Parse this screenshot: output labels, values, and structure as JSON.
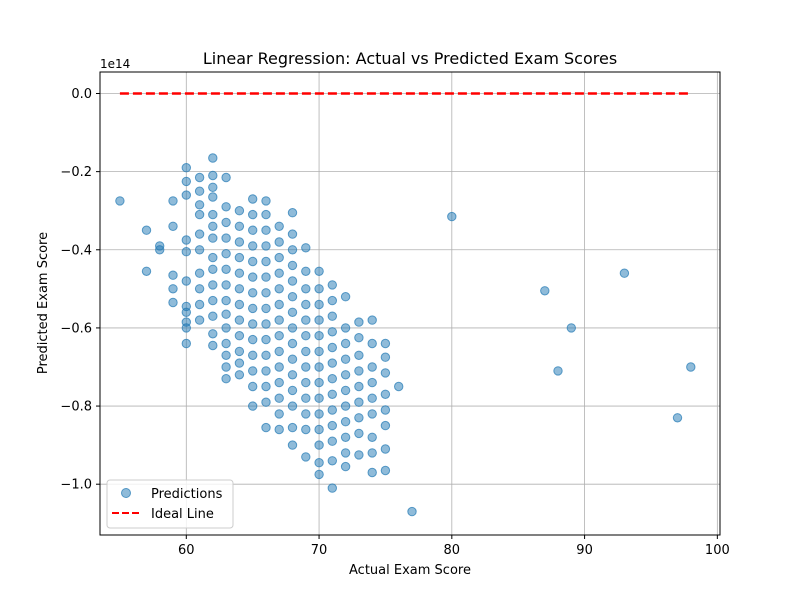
{
  "chart_data": {
    "type": "scatter",
    "title": "Linear Regression: Actual vs Predicted Exam Scores",
    "xlabel": "Actual Exam Score",
    "ylabel": "Predicted Exam Score",
    "y_scale_label": "1e14",
    "xlim": [
      53.5,
      100.2
    ],
    "ylim": [
      -1.13,
      0.055
    ],
    "x_ticks": [
      60,
      70,
      80,
      90,
      100
    ],
    "x_tick_labels": [
      "60",
      "70",
      "80",
      "90",
      "100"
    ],
    "y_ticks": [
      0.0,
      -0.2,
      -0.4,
      -0.6,
      -0.8,
      -1.0
    ],
    "y_tick_labels": [
      "0.0",
      "−0.2",
      "−0.4",
      "−0.6",
      "−0.8",
      "−1.0"
    ],
    "grid": true,
    "legend_position": "lower-left",
    "series": [
      {
        "name": "Predictions",
        "kind": "scatter",
        "color": "#1f77b4",
        "points": [
          [
            55,
            -0.275
          ],
          [
            57,
            -0.35
          ],
          [
            57,
            -0.455
          ],
          [
            58,
            -0.39
          ],
          [
            58,
            -0.4
          ],
          [
            59,
            -0.275
          ],
          [
            59,
            -0.34
          ],
          [
            59,
            -0.465
          ],
          [
            59,
            -0.5
          ],
          [
            59,
            -0.535
          ],
          [
            60,
            -0.19
          ],
          [
            60,
            -0.225
          ],
          [
            60,
            -0.26
          ],
          [
            60,
            -0.375
          ],
          [
            60,
            -0.405
          ],
          [
            60,
            -0.48
          ],
          [
            60,
            -0.545
          ],
          [
            60,
            -0.56
          ],
          [
            60,
            -0.585
          ],
          [
            60,
            -0.6
          ],
          [
            60,
            -0.64
          ],
          [
            61,
            -0.215
          ],
          [
            61,
            -0.25
          ],
          [
            61,
            -0.285
          ],
          [
            61,
            -0.31
          ],
          [
            61,
            -0.36
          ],
          [
            61,
            -0.4
          ],
          [
            61,
            -0.46
          ],
          [
            61,
            -0.5
          ],
          [
            61,
            -0.54
          ],
          [
            61,
            -0.58
          ],
          [
            62,
            -0.165
          ],
          [
            62,
            -0.21
          ],
          [
            62,
            -0.24
          ],
          [
            62,
            -0.265
          ],
          [
            62,
            -0.31
          ],
          [
            62,
            -0.34
          ],
          [
            62,
            -0.37
          ],
          [
            62,
            -0.42
          ],
          [
            62,
            -0.45
          ],
          [
            62,
            -0.49
          ],
          [
            62,
            -0.53
          ],
          [
            62,
            -0.57
          ],
          [
            62,
            -0.615
          ],
          [
            62,
            -0.645
          ],
          [
            63,
            -0.215
          ],
          [
            63,
            -0.29
          ],
          [
            63,
            -0.33
          ],
          [
            63,
            -0.37
          ],
          [
            63,
            -0.41
          ],
          [
            63,
            -0.45
          ],
          [
            63,
            -0.49
          ],
          [
            63,
            -0.53
          ],
          [
            63,
            -0.565
          ],
          [
            63,
            -0.6
          ],
          [
            63,
            -0.64
          ],
          [
            63,
            -0.67
          ],
          [
            63,
            -0.7
          ],
          [
            63,
            -0.73
          ],
          [
            64,
            -0.3
          ],
          [
            64,
            -0.34
          ],
          [
            64,
            -0.38
          ],
          [
            64,
            -0.42
          ],
          [
            64,
            -0.46
          ],
          [
            64,
            -0.5
          ],
          [
            64,
            -0.54
          ],
          [
            64,
            -0.58
          ],
          [
            64,
            -0.62
          ],
          [
            64,
            -0.66
          ],
          [
            64,
            -0.69
          ],
          [
            64,
            -0.72
          ],
          [
            65,
            -0.27
          ],
          [
            65,
            -0.31
          ],
          [
            65,
            -0.35
          ],
          [
            65,
            -0.39
          ],
          [
            65,
            -0.43
          ],
          [
            65,
            -0.47
          ],
          [
            65,
            -0.51
          ],
          [
            65,
            -0.55
          ],
          [
            65,
            -0.59
          ],
          [
            65,
            -0.63
          ],
          [
            65,
            -0.67
          ],
          [
            65,
            -0.71
          ],
          [
            65,
            -0.75
          ],
          [
            65,
            -0.8
          ],
          [
            66,
            -0.275
          ],
          [
            66,
            -0.31
          ],
          [
            66,
            -0.35
          ],
          [
            66,
            -0.39
          ],
          [
            66,
            -0.43
          ],
          [
            66,
            -0.47
          ],
          [
            66,
            -0.51
          ],
          [
            66,
            -0.55
          ],
          [
            66,
            -0.59
          ],
          [
            66,
            -0.63
          ],
          [
            66,
            -0.67
          ],
          [
            66,
            -0.71
          ],
          [
            66,
            -0.75
          ],
          [
            66,
            -0.79
          ],
          [
            66,
            -0.855
          ],
          [
            67,
            -0.34
          ],
          [
            67,
            -0.38
          ],
          [
            67,
            -0.42
          ],
          [
            67,
            -0.46
          ],
          [
            67,
            -0.5
          ],
          [
            67,
            -0.54
          ],
          [
            67,
            -0.58
          ],
          [
            67,
            -0.62
          ],
          [
            67,
            -0.66
          ],
          [
            67,
            -0.7
          ],
          [
            67,
            -0.74
          ],
          [
            67,
            -0.78
          ],
          [
            67,
            -0.82
          ],
          [
            67,
            -0.86
          ],
          [
            68,
            -0.305
          ],
          [
            68,
            -0.36
          ],
          [
            68,
            -0.4
          ],
          [
            68,
            -0.44
          ],
          [
            68,
            -0.48
          ],
          [
            68,
            -0.52
          ],
          [
            68,
            -0.56
          ],
          [
            68,
            -0.6
          ],
          [
            68,
            -0.64
          ],
          [
            68,
            -0.68
          ],
          [
            68,
            -0.72
          ],
          [
            68,
            -0.76
          ],
          [
            68,
            -0.8
          ],
          [
            68,
            -0.855
          ],
          [
            68,
            -0.9
          ],
          [
            69,
            -0.395
          ],
          [
            69,
            -0.455
          ],
          [
            69,
            -0.5
          ],
          [
            69,
            -0.54
          ],
          [
            69,
            -0.58
          ],
          [
            69,
            -0.62
          ],
          [
            69,
            -0.66
          ],
          [
            69,
            -0.7
          ],
          [
            69,
            -0.74
          ],
          [
            69,
            -0.78
          ],
          [
            69,
            -0.82
          ],
          [
            69,
            -0.86
          ],
          [
            69,
            -0.93
          ],
          [
            70,
            -0.455
          ],
          [
            70,
            -0.5
          ],
          [
            70,
            -0.54
          ],
          [
            70,
            -0.58
          ],
          [
            70,
            -0.62
          ],
          [
            70,
            -0.66
          ],
          [
            70,
            -0.7
          ],
          [
            70,
            -0.74
          ],
          [
            70,
            -0.78
          ],
          [
            70,
            -0.82
          ],
          [
            70,
            -0.86
          ],
          [
            70,
            -0.9
          ],
          [
            70,
            -0.945
          ],
          [
            70,
            -0.975
          ],
          [
            71,
            -0.49
          ],
          [
            71,
            -0.53
          ],
          [
            71,
            -0.57
          ],
          [
            71,
            -0.61
          ],
          [
            71,
            -0.65
          ],
          [
            71,
            -0.69
          ],
          [
            71,
            -0.73
          ],
          [
            71,
            -0.77
          ],
          [
            71,
            -0.81
          ],
          [
            71,
            -0.85
          ],
          [
            71,
            -0.89
          ],
          [
            71,
            -0.94
          ],
          [
            71,
            -1.01
          ],
          [
            72,
            -0.52
          ],
          [
            72,
            -0.6
          ],
          [
            72,
            -0.64
          ],
          [
            72,
            -0.68
          ],
          [
            72,
            -0.72
          ],
          [
            72,
            -0.76
          ],
          [
            72,
            -0.8
          ],
          [
            72,
            -0.84
          ],
          [
            72,
            -0.88
          ],
          [
            72,
            -0.92
          ],
          [
            72,
            -0.955
          ],
          [
            73,
            -0.585
          ],
          [
            73,
            -0.625
          ],
          [
            73,
            -0.67
          ],
          [
            73,
            -0.71
          ],
          [
            73,
            -0.75
          ],
          [
            73,
            -0.79
          ],
          [
            73,
            -0.83
          ],
          [
            73,
            -0.87
          ],
          [
            73,
            -0.925
          ],
          [
            74,
            -0.58
          ],
          [
            74,
            -0.64
          ],
          [
            74,
            -0.7
          ],
          [
            74,
            -0.74
          ],
          [
            74,
            -0.78
          ],
          [
            74,
            -0.82
          ],
          [
            74,
            -0.88
          ],
          [
            74,
            -0.92
          ],
          [
            74,
            -0.97
          ],
          [
            75,
            -0.64
          ],
          [
            75,
            -0.675
          ],
          [
            75,
            -0.715
          ],
          [
            75,
            -0.77
          ],
          [
            75,
            -0.81
          ],
          [
            75,
            -0.85
          ],
          [
            75,
            -0.91
          ],
          [
            75,
            -0.965
          ],
          [
            76,
            -0.75
          ],
          [
            77,
            -1.07
          ],
          [
            80,
            -0.315
          ],
          [
            87,
            -0.505
          ],
          [
            88,
            -0.71
          ],
          [
            89,
            -0.6
          ],
          [
            93,
            -0.46
          ],
          [
            97,
            -0.83
          ],
          [
            98,
            -0.7
          ]
        ]
      },
      {
        "name": "Ideal Line",
        "kind": "line",
        "color": "#ff0000",
        "dash": "dashed",
        "x": [
          55,
          98
        ],
        "y": [
          0.0,
          0.0
        ]
      }
    ]
  }
}
